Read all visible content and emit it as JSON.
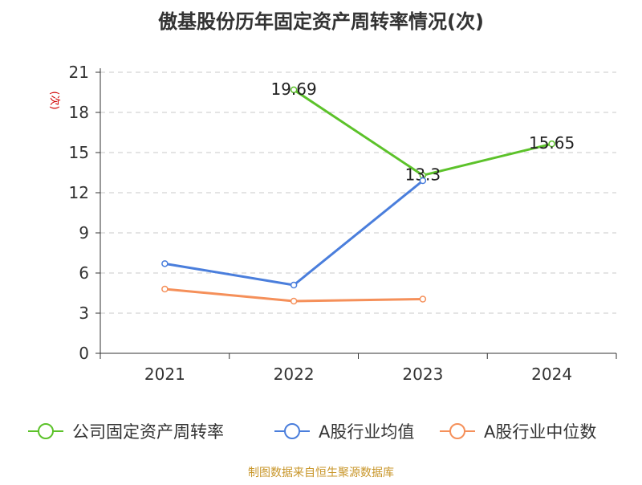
{
  "chart_data": {
    "type": "line",
    "title": "傲基股份历年固定资产周转率情况(次)",
    "ylabel": "(次)",
    "xlabel": "",
    "categories": [
      "2021",
      "2022",
      "2023",
      "2024"
    ],
    "ylim": [
      0,
      21
    ],
    "yticks": [
      0,
      3,
      6,
      9,
      12,
      15,
      18,
      21
    ],
    "grid": "horizontal-dashed",
    "legend_position": "bottom",
    "series": [
      {
        "name": "公司固定资产周转率",
        "color": "#5cc22a",
        "values": [
          null,
          19.69,
          13.3,
          15.65
        ],
        "labels": [
          null,
          "19.69",
          "13.3",
          "15.65"
        ]
      },
      {
        "name": "A股行业均值",
        "color": "#4a7edc",
        "values": [
          6.7,
          5.1,
          12.9,
          null
        ],
        "labels": [
          null,
          null,
          null,
          null
        ]
      },
      {
        "name": "A股行业中位数",
        "color": "#f5905a",
        "values": [
          4.8,
          3.9,
          4.05,
          null
        ],
        "labels": [
          null,
          null,
          null,
          null
        ]
      }
    ]
  },
  "footer": {
    "source": "制图数据来自恒生聚源数据库",
    "source_color": "#c8962a"
  }
}
